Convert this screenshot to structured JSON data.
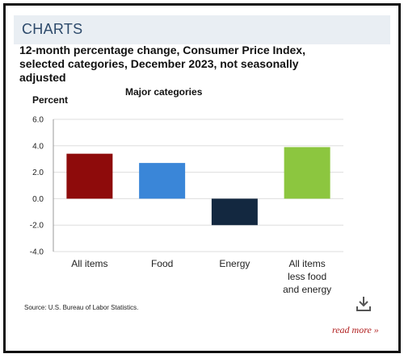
{
  "header": {
    "title": "CHARTS"
  },
  "chart_data": {
    "type": "bar",
    "title": "12-month percentage change, Consumer Price Index, selected categories, December 2023, not seasonally adjusted",
    "subtitle": "Major categories",
    "ylabel": "Percent",
    "xlabel": "",
    "categories": [
      "All items",
      "Food",
      "Energy",
      "All items less food and energy"
    ],
    "category_lines": [
      [
        "All items"
      ],
      [
        "Food"
      ],
      [
        "Energy"
      ],
      [
        "All items",
        "less food",
        "and energy"
      ]
    ],
    "values": [
      3.4,
      2.7,
      -2.0,
      3.9
    ],
    "colors": [
      "#8e0b0b",
      "#3a86d8",
      "#132840",
      "#8cc63f"
    ],
    "ylim": [
      -4.0,
      6.0
    ],
    "yticks": [
      6.0,
      4.0,
      2.0,
      0.0,
      -2.0,
      -4.0
    ],
    "ytick_labels": [
      "6.0",
      "4.0",
      "2.0",
      "0.0",
      "-2.0",
      "-4.0"
    ],
    "grid": true,
    "legend": "none"
  },
  "source_text": "Source: U.S. Bureau of Labor Statistics.",
  "download_icon": "download-icon",
  "read_more_label": "read more »"
}
